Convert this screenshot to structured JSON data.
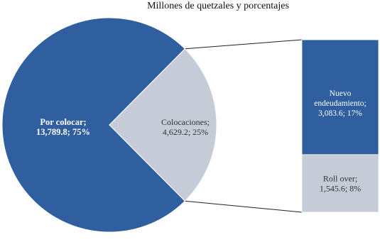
{
  "chart_data": {
    "type": "pie",
    "title": "",
    "subtitle": "Millones de quetzales y porcentajes",
    "pie": {
      "slices": [
        {
          "name": "Por colocar",
          "value": 13789.8,
          "percent": 75,
          "label_lines": [
            "Por colocar;",
            "13,789.8; 75%"
          ],
          "color": "#2f5f9e"
        },
        {
          "name": "Colocaciones",
          "value": 4629.2,
          "percent": 25,
          "label_lines": [
            "Colocaciones;",
            "4,629.2; 25%"
          ],
          "color": "#c6cbd8"
        }
      ]
    },
    "bar_of_pie": {
      "segments": [
        {
          "name": "Nuevo endeudamiento",
          "value": 3083.6,
          "percent": 17,
          "label_lines": [
            "Nuevo",
            "endeudamiento;",
            "3,083.6; 17%"
          ],
          "color": "#2f5f9e"
        },
        {
          "name": "Roll over",
          "value": 1545.6,
          "percent": 8,
          "label_lines": [
            "Roll over;",
            "1,545.6; 8%"
          ],
          "color": "#c6cbd8"
        }
      ]
    },
    "connector_color": "#222222"
  }
}
